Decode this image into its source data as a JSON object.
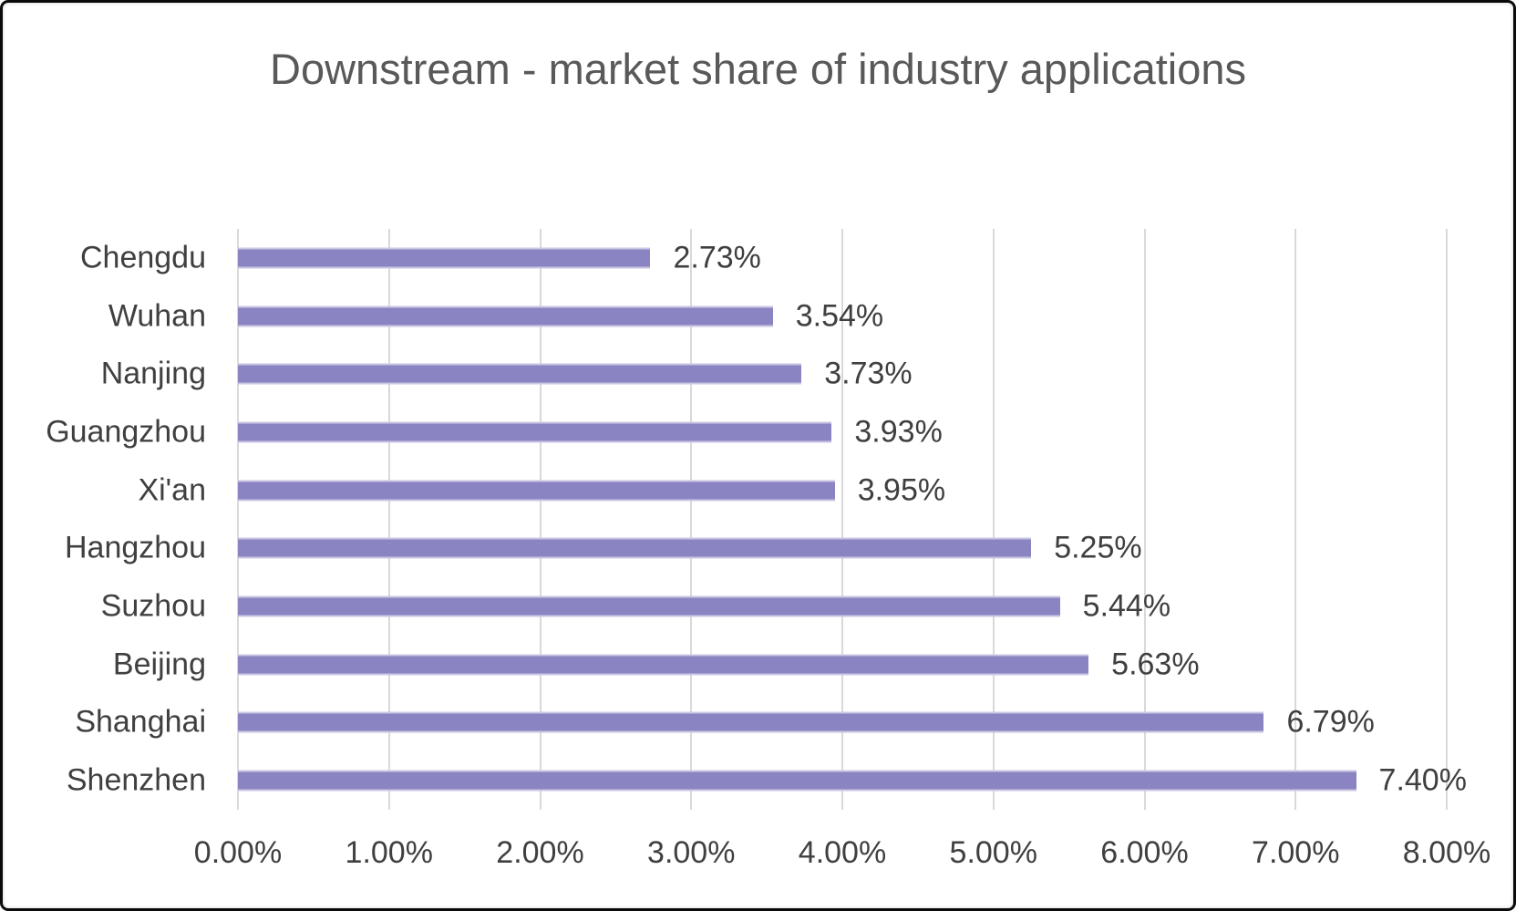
{
  "frame": {
    "background": "#ffffff",
    "border_color": "#0a0a0a"
  },
  "chart_data": {
    "type": "bar",
    "orientation": "horizontal",
    "title": "Downstream - market share of industry applications",
    "category_order": "top-to-bottom",
    "categories": [
      "Chengdu",
      "Wuhan",
      "Nanjing",
      "Guangzhou",
      "Xi'an",
      "Hangzhou",
      "Suzhou",
      "Beijing",
      "Shanghai",
      "Shenzhen"
    ],
    "values": [
      2.73,
      3.54,
      3.73,
      3.93,
      3.95,
      5.25,
      5.44,
      5.63,
      6.79,
      7.4
    ],
    "data_labels": [
      "2.73%",
      "3.54%",
      "3.73%",
      "3.93%",
      "3.95%",
      "5.25%",
      "5.44%",
      "5.63%",
      "6.79%",
      "7.40%"
    ],
    "x_tick_labels": [
      "0.00%",
      "1.00%",
      "2.00%",
      "3.00%",
      "4.00%",
      "5.00%",
      "6.00%",
      "7.00%",
      "8.00%"
    ],
    "x_tick_values": [
      0,
      1,
      2,
      3,
      4,
      5,
      6,
      7,
      8
    ],
    "xlim": [
      0,
      8
    ],
    "xlabel": "",
    "ylabel": "",
    "grid": true,
    "legend": false,
    "bar_color": "#8a84c2",
    "gridline_color": "#d9d9d9",
    "label_color": "#404040",
    "title_color": "#595959"
  }
}
